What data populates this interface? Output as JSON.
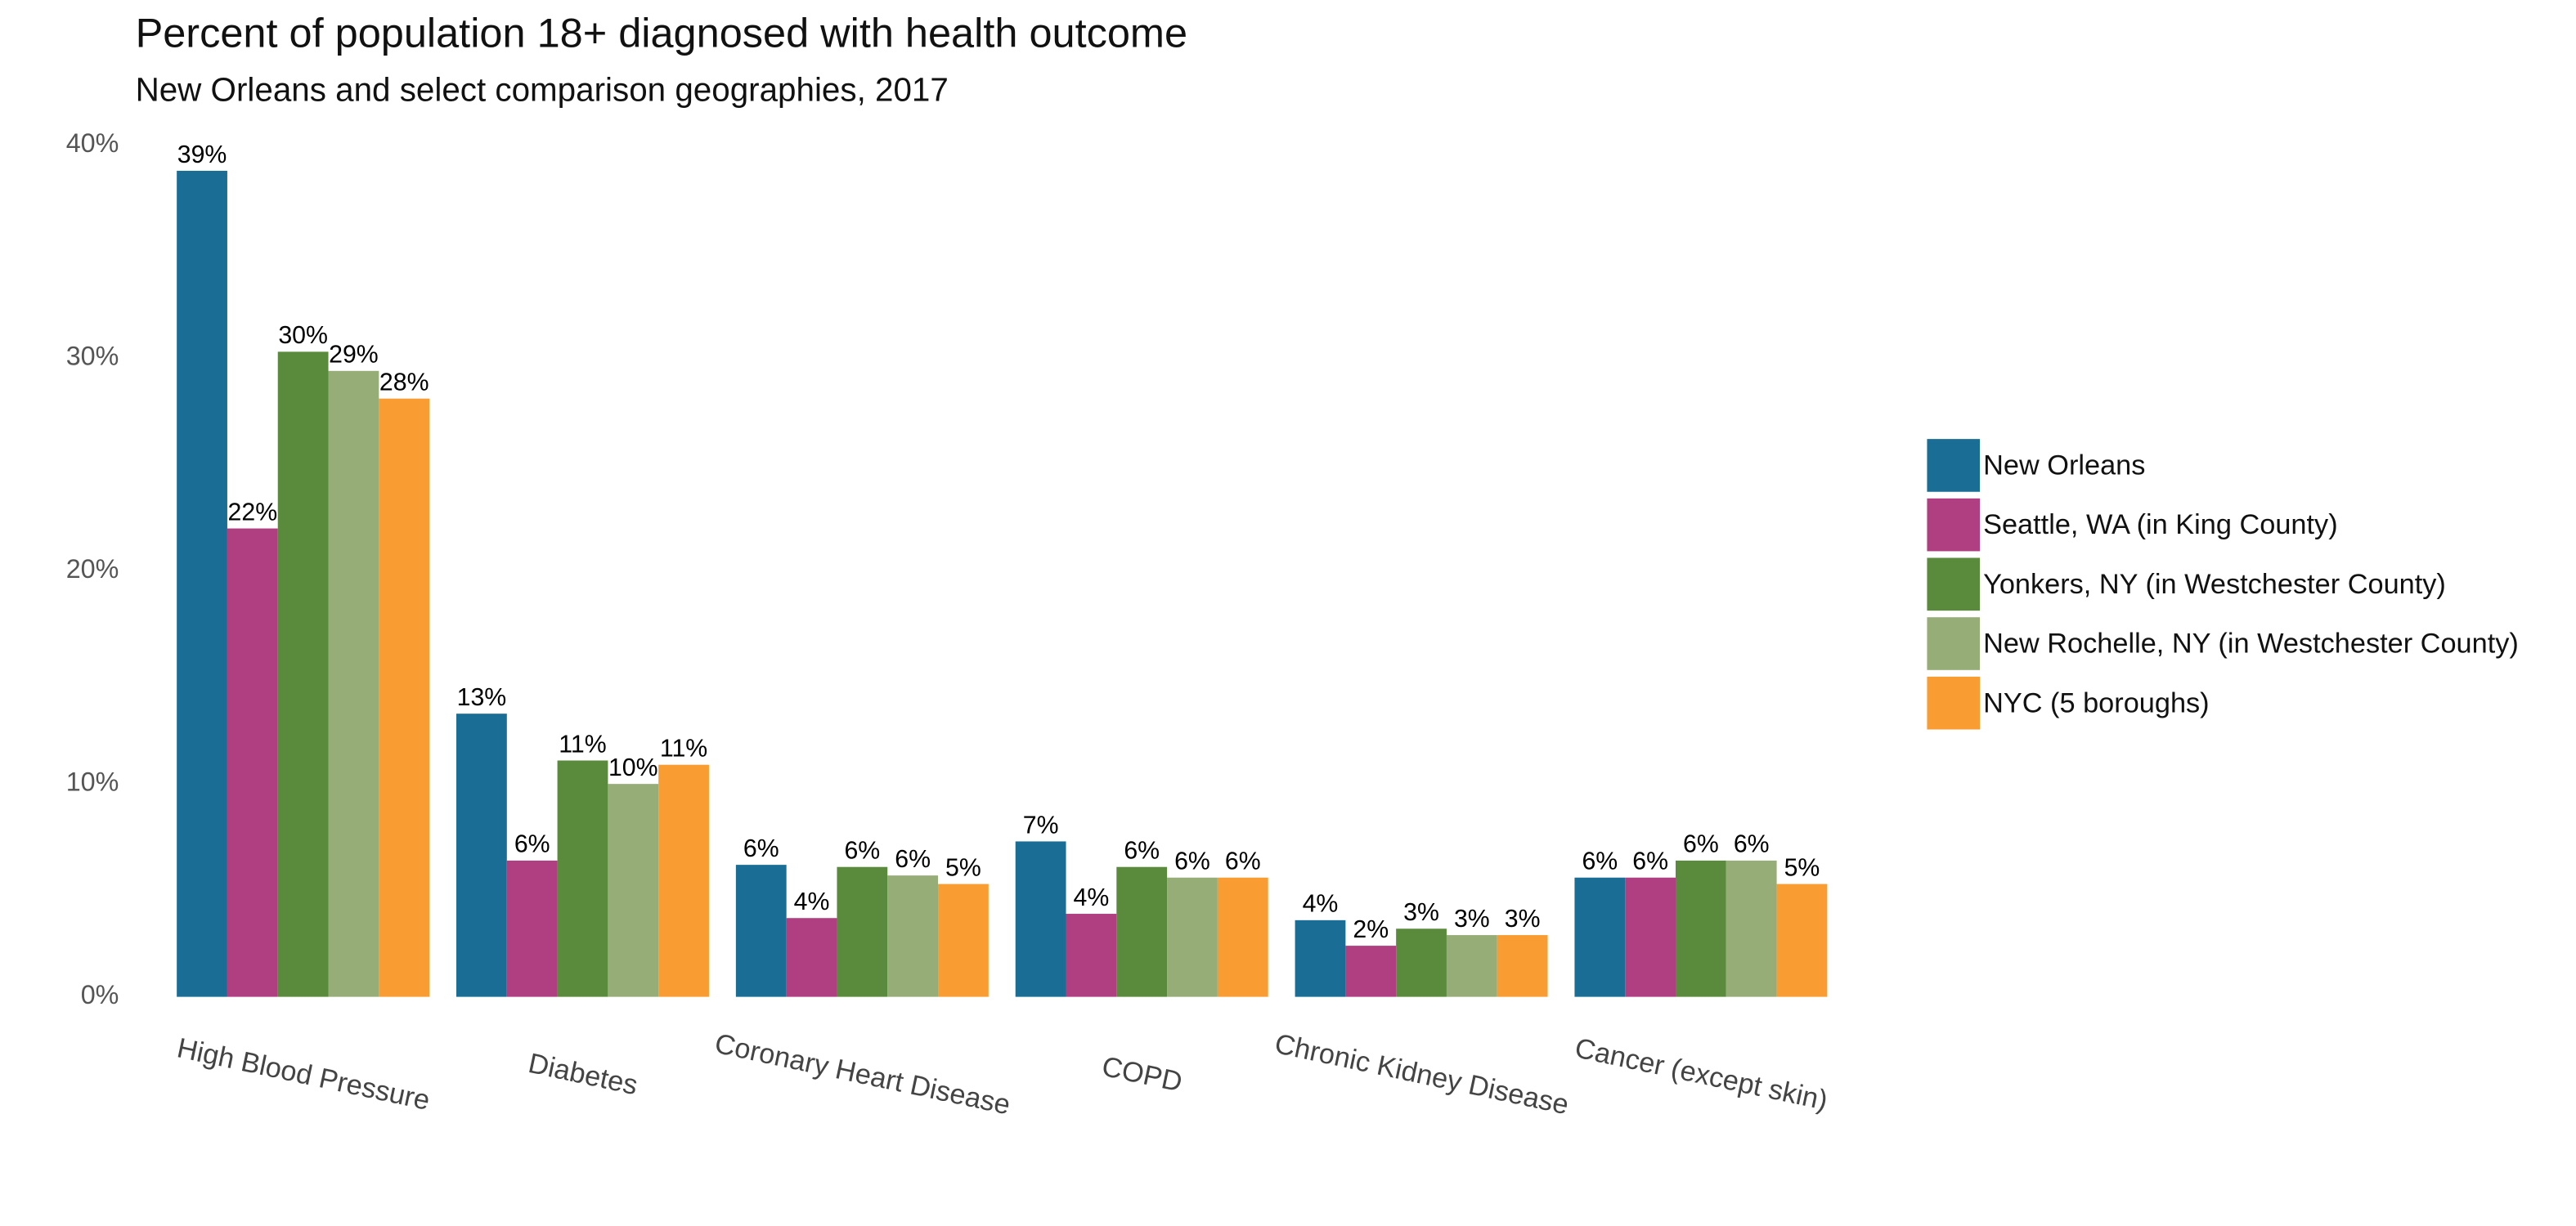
{
  "chart_data": {
    "type": "bar",
    "title": "Percent of population 18+ diagnosed with health outcome",
    "subtitle": "New Orleans and select comparison geographies, 2017",
    "categories": [
      "High Blood Pressure",
      "Diabetes",
      "Coronary Heart Disease",
      "COPD",
      "Chronic Kidney Disease",
      "Cancer (except skin)"
    ],
    "series": [
      {
        "name": "New Orleans",
        "color": "#1a6e96",
        "values": [
          38.8,
          13.3,
          6.2,
          7.3,
          3.6,
          5.6
        ],
        "value_labels": [
          "39%",
          "13%",
          "6%",
          "7%",
          "4%",
          "6%"
        ]
      },
      {
        "name": "Seattle, WA (in King County)",
        "color": "#b03f82",
        "values": [
          22.0,
          6.4,
          3.7,
          3.9,
          2.4,
          5.6
        ],
        "value_labels": [
          "22%",
          "6%",
          "4%",
          "4%",
          "2%",
          "6%"
        ]
      },
      {
        "name": "Yonkers, NY (in Westchester County)",
        "color": "#5a8a3c",
        "values": [
          30.3,
          11.1,
          6.1,
          6.1,
          3.2,
          6.4
        ],
        "value_labels": [
          "30%",
          "11%",
          "6%",
          "6%",
          "3%",
          "6%"
        ]
      },
      {
        "name": "New Rochelle, NY (in Westchester County)",
        "color": "#97ad78",
        "values": [
          29.4,
          10.0,
          5.7,
          5.6,
          2.9,
          6.4
        ],
        "value_labels": [
          "29%",
          "10%",
          "6%",
          "6%",
          "3%",
          "6%"
        ]
      },
      {
        "name": "NYC (5 boroughs)",
        "color": "#f99d33",
        "values": [
          28.1,
          10.9,
          5.3,
          5.6,
          2.9,
          5.3
        ],
        "value_labels": [
          "28%",
          "11%",
          "5%",
          "6%",
          "3%",
          "5%"
        ]
      }
    ],
    "ylim": [
      0,
      40
    ],
    "yticks": [
      {
        "value": 0,
        "label": "0%"
      },
      {
        "value": 10,
        "label": "10%"
      },
      {
        "value": 20,
        "label": "20%"
      },
      {
        "value": 30,
        "label": "30%"
      },
      {
        "value": 40,
        "label": "40%"
      }
    ],
    "legend": "right"
  }
}
